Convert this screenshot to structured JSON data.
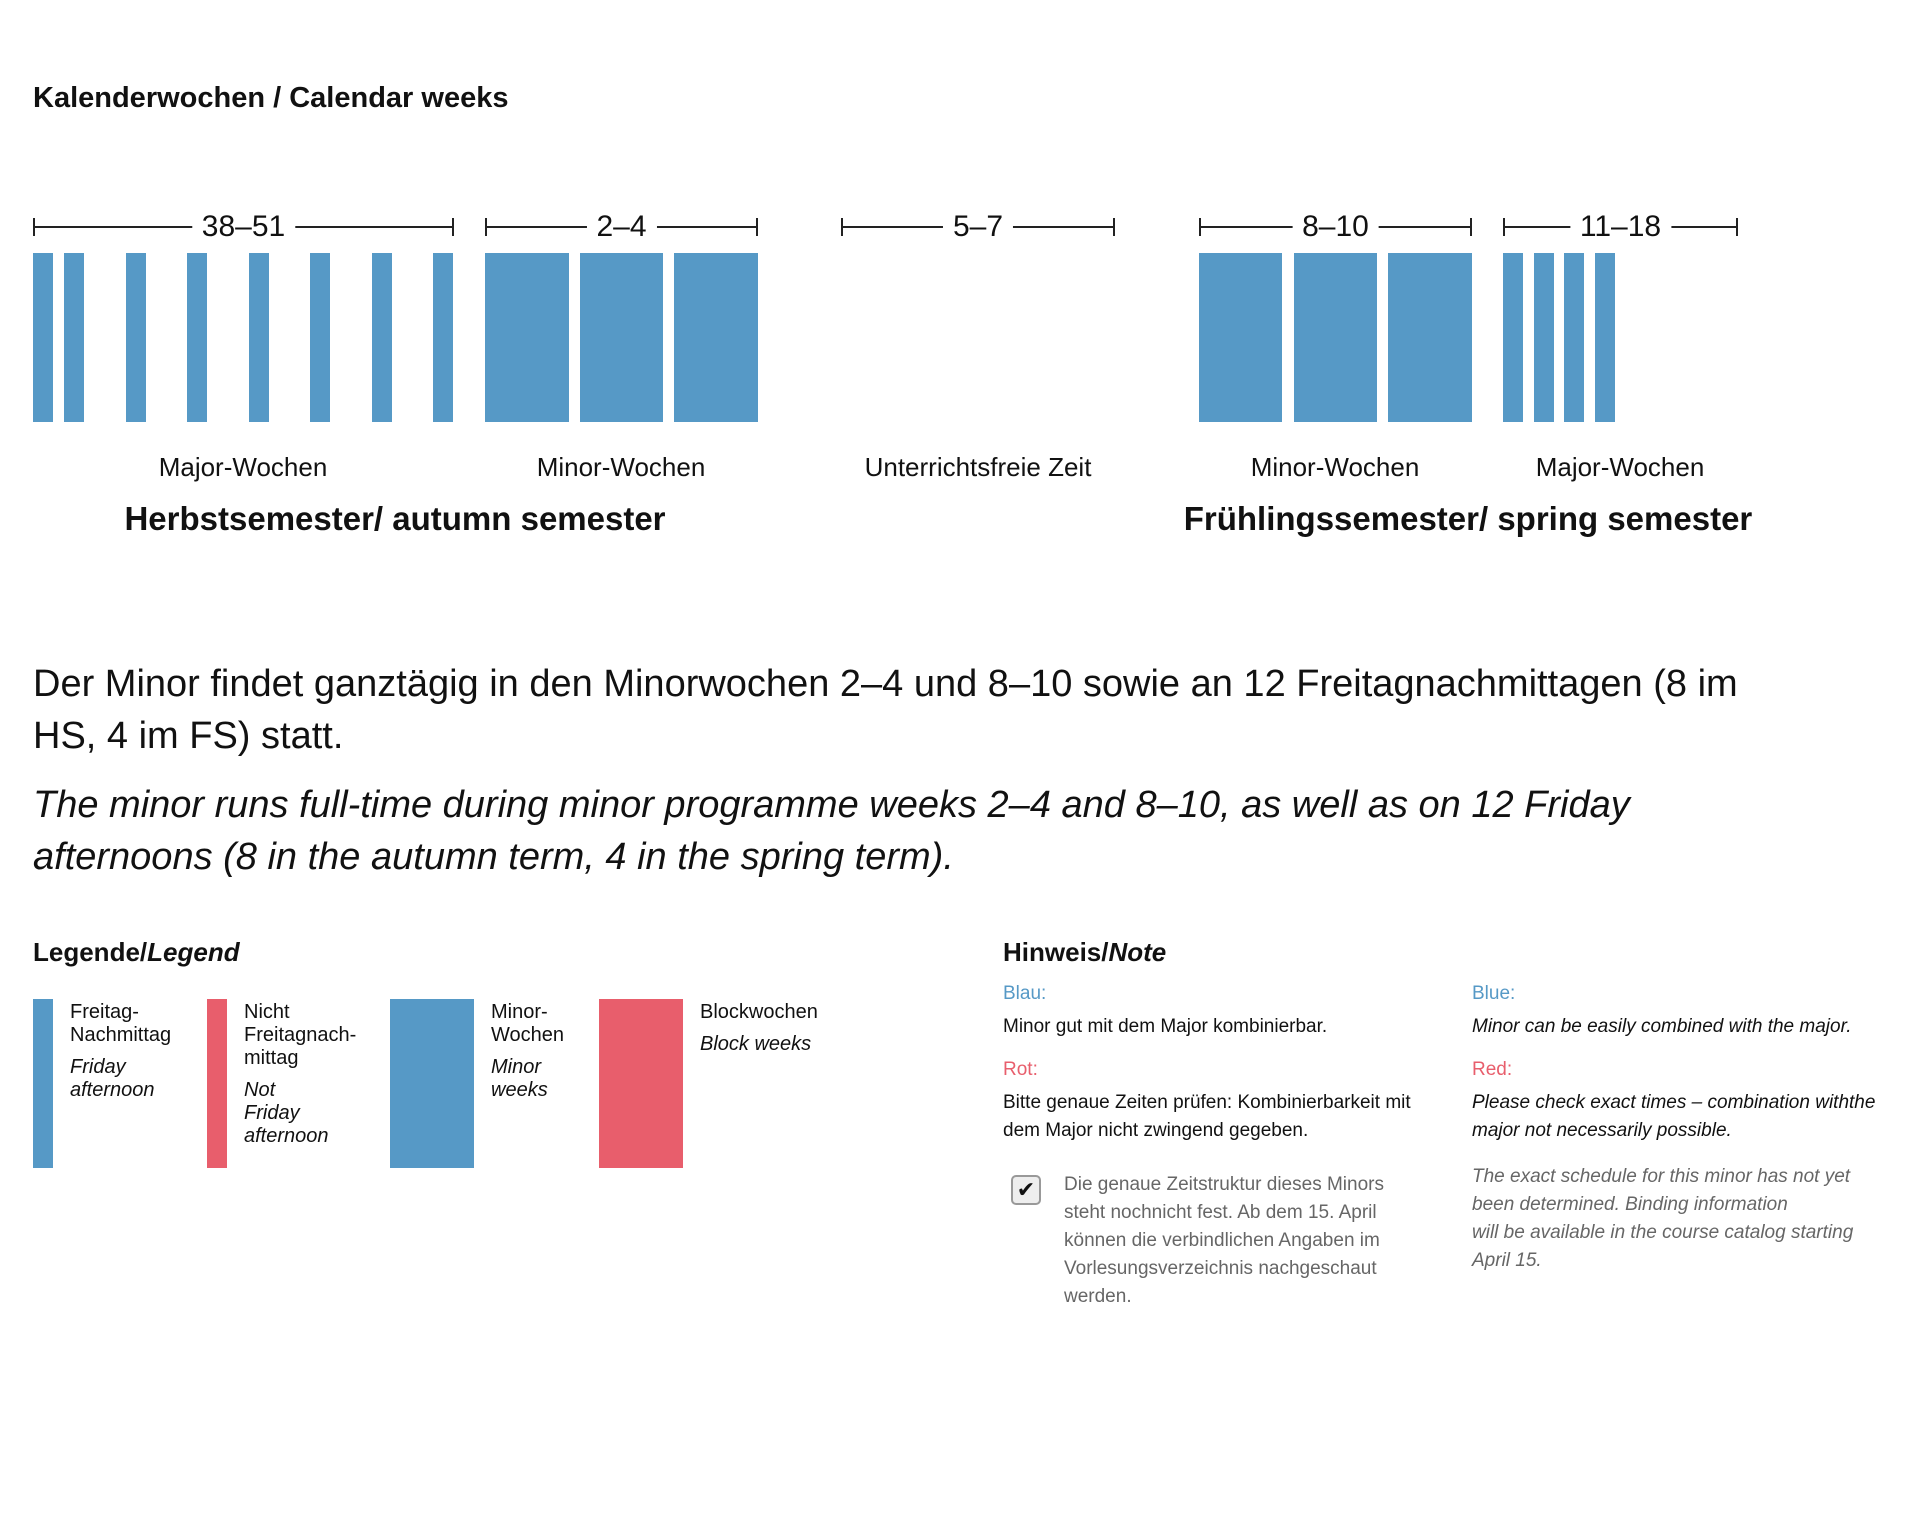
{
  "title": "Kalenderwochen / Calendar weeks",
  "chart": {
    "brackets": [
      "38–51",
      "2–4",
      "5–7",
      "8–10",
      "11–18"
    ],
    "labels": [
      "Major-Wochen",
      "Minor-Wochen",
      "Unterrichtsfreie Zeit",
      "Minor-Wochen",
      "Major-Wochen"
    ],
    "semesters": [
      "Herbstsemester/ autumn semester",
      "Frühlingssemester/ spring semester"
    ],
    "bar_color": "#5699C6",
    "autumn_friday_afternoons": 8,
    "spring_friday_afternoons": 4
  },
  "paragraph_de": "Der Minor findet ganztägig in den Minorwochen 2–4 und 8–10 sowie an 12 Freitagnachmittagen (8 im HS, 4 im FS) statt.",
  "paragraph_en": "The minor runs full-time during minor programme weeks 2–4 and 8–10, as well as on 12 Friday afternoons (8 in the autumn term, 4 in the spring term).",
  "legend": {
    "title_de": "Legende/",
    "title_en": "Legend",
    "items": [
      {
        "de": "Freitag-\nNachmittag",
        "en": "Friday\nafternoon",
        "color": "#5699C6"
      },
      {
        "de": "Nicht\nFreitagnach-\nmittag",
        "en": "Not\nFriday\nafternoon",
        "color": "#E85E6C"
      },
      {
        "de": "Minor-\nWochen",
        "en": "Minor\nweeks",
        "color": "#5699C6"
      },
      {
        "de": "Blockwochen",
        "en": "Block weeks",
        "color": "#E85E6C"
      }
    ]
  },
  "note": {
    "title_de": "Hinweis/",
    "title_en": "Note",
    "blue_de": "Blau:",
    "blue_text_de": "Minor gut mit dem Major kombinierbar.",
    "red_de": "Rot:",
    "red_text_de": "Bitte genaue Zeiten prüfen: Kombinierbarkeit mit dem Major nicht zwingend gegeben.",
    "blue_en": "Blue:",
    "blue_text_en": "Minor can be easily combined with the major.",
    "red_en": "Red:",
    "red_text_en": "Please check exact times – combination withthe major not necessarily possible.",
    "checkbox_checked": true,
    "schedule_de": "Die genaue Zeitstruktur dieses Minors steht nochnicht fest. Ab dem 15. April können die verbindlichen Angaben im Vorlesungsverzeichnis nachgeschaut werden.",
    "schedule_en": "The exact schedule for this minor has not yet been determined. Binding information\nwill be available in the course catalog starting April 15."
  }
}
